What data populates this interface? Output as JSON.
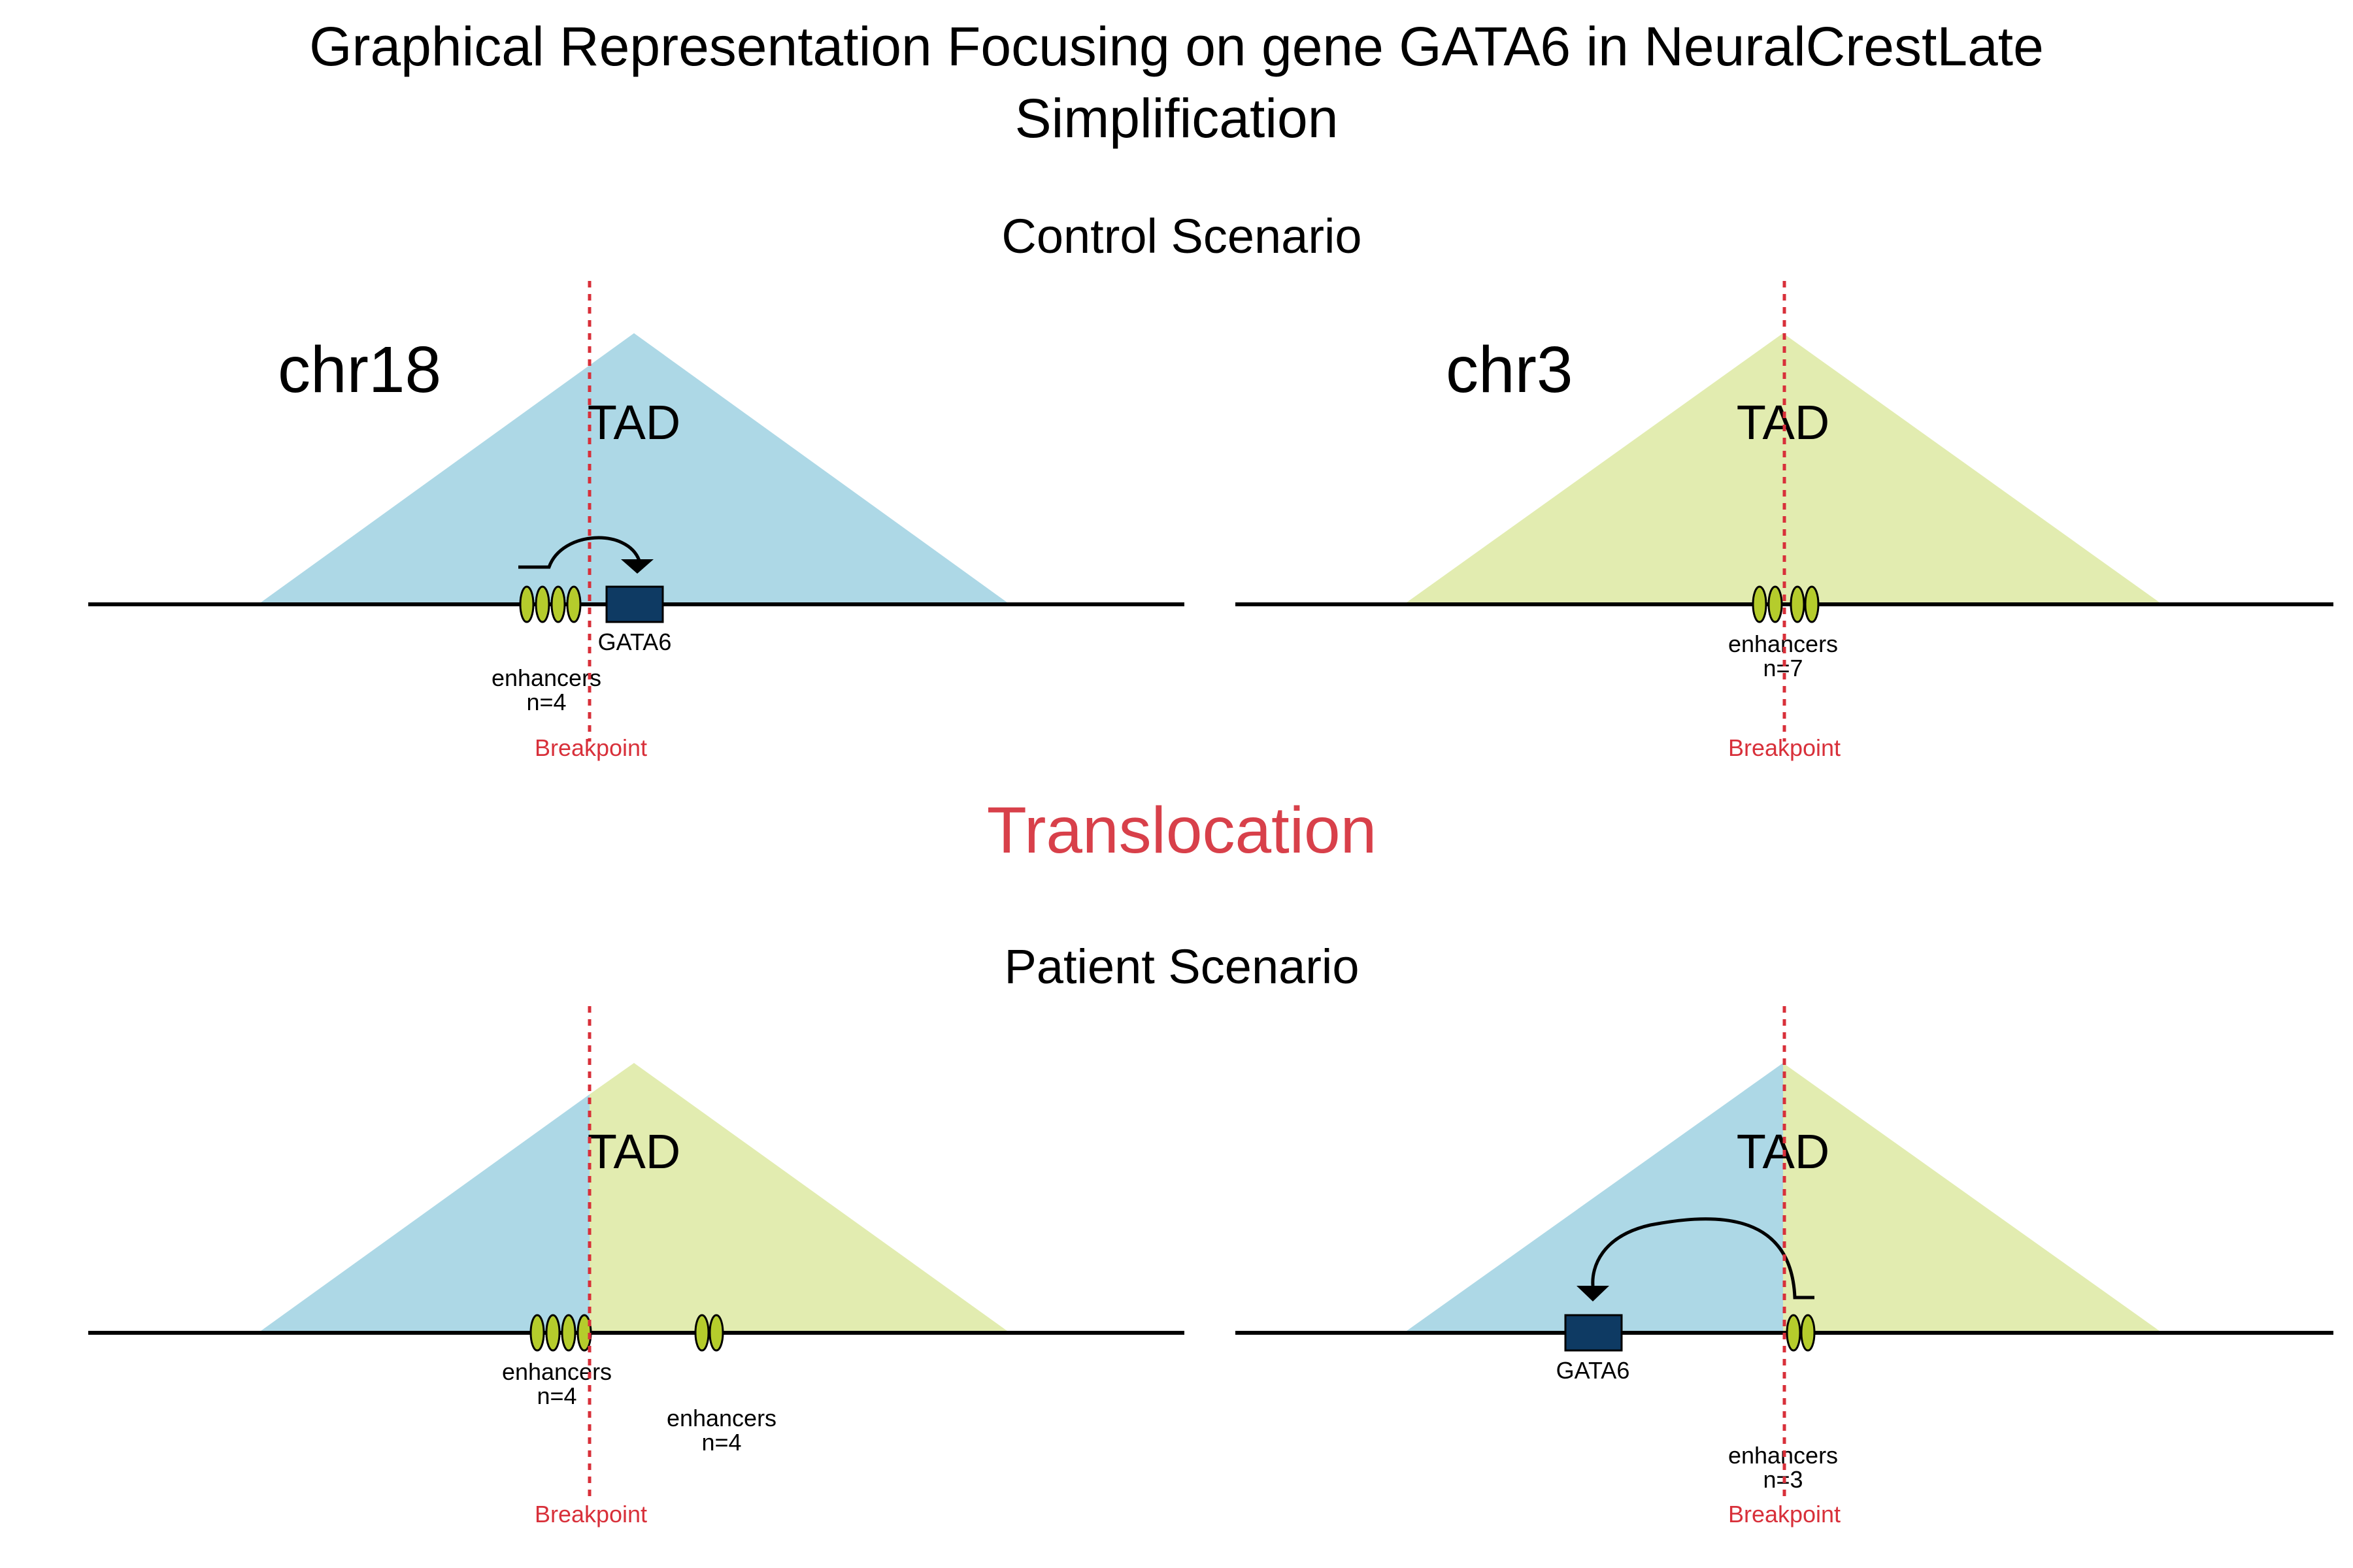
{
  "title_line1": "Graphical Representation Focusing on gene GATA6 in NeuralCrestLate",
  "title_line2": "Simplification",
  "control_title": "Control Scenario",
  "translocation_label": "Translocation",
  "patient_title": "Patient Scenario",
  "chr_left": "chr18",
  "chr_right": "chr3",
  "tad_label": "TAD",
  "gene_label": "GATA6",
  "breakpoint_label": "Breakpoint",
  "enhancers_word": "enhancers",
  "control_left_enh_count": "n=4",
  "control_right_enh_count": "n=7",
  "patient_left_enh1_count": "n=4",
  "patient_left_enh2_count": "n=4",
  "patient_right_enh_count": "n=3",
  "colors": {
    "chr18_tad": "#add8e6",
    "chr3_tad": "#e2ecb0",
    "enhancer_fill": "#b5cc2c",
    "gene_fill": "#0e3a63",
    "breakpoint": "#d8303a",
    "translocation_text": "#d8404a"
  }
}
